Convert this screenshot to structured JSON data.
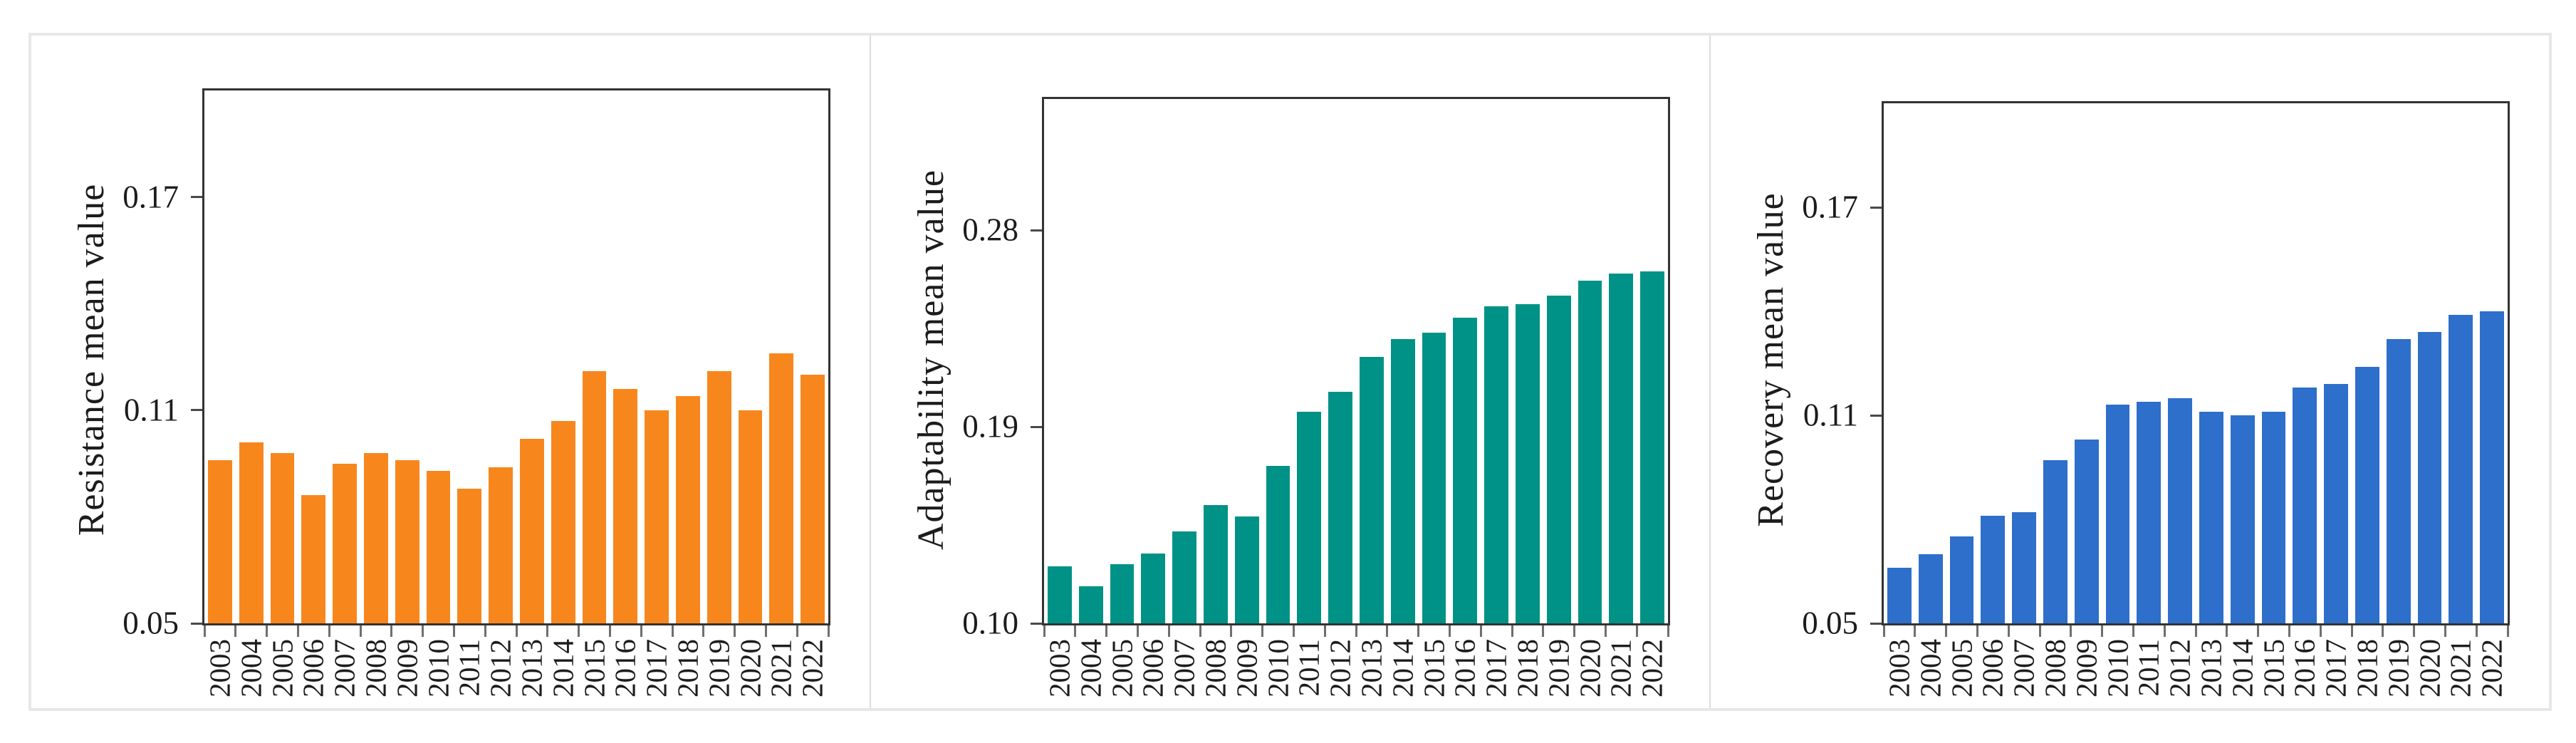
{
  "figure": {
    "panel_count": 3
  },
  "chart_data": [
    {
      "type": "bar",
      "ylabel": "Resistance mean value",
      "xlabel": "",
      "bar_color": "#F7871D",
      "categories": [
        "2003",
        "2004",
        "2005",
        "2006",
        "2007",
        "2008",
        "2009",
        "2010",
        "2011",
        "2012",
        "2013",
        "2014",
        "2015",
        "2016",
        "2017",
        "2018",
        "2019",
        "2020",
        "2021",
        "2022"
      ],
      "values": [
        0.096,
        0.101,
        0.098,
        0.086,
        0.095,
        0.098,
        0.096,
        0.093,
        0.088,
        0.094,
        0.102,
        0.107,
        0.121,
        0.116,
        0.11,
        0.114,
        0.121,
        0.11,
        0.126,
        0.12
      ],
      "ylim": [
        0.05,
        0.2
      ],
      "yticks": [
        {
          "value": 0.05,
          "label": "0.05"
        },
        {
          "value": 0.11,
          "label": "0.11"
        },
        {
          "value": 0.17,
          "label": "0.17"
        }
      ],
      "grid": false,
      "legend": null
    },
    {
      "type": "bar",
      "ylabel": "Adaptability mean value",
      "xlabel": "",
      "bar_color": "#009286",
      "categories": [
        "2003",
        "2004",
        "2005",
        "2006",
        "2007",
        "2008",
        "2009",
        "2010",
        "2011",
        "2012",
        "2013",
        "2014",
        "2015",
        "2016",
        "2017",
        "2018",
        "2019",
        "2020",
        "2021",
        "2022"
      ],
      "values": [
        0.126,
        0.117,
        0.127,
        0.132,
        0.142,
        0.154,
        0.149,
        0.172,
        0.197,
        0.206,
        0.222,
        0.23,
        0.233,
        0.24,
        0.245,
        0.246,
        0.25,
        0.257,
        0.26,
        0.261
      ],
      "ylim": [
        0.1,
        0.34
      ],
      "yticks": [
        {
          "value": 0.1,
          "label": "0.10"
        },
        {
          "value": 0.19,
          "label": "0.19"
        },
        {
          "value": 0.28,
          "label": "0.28"
        }
      ],
      "grid": false,
      "legend": null
    },
    {
      "type": "bar",
      "ylabel": "Recovery mean value",
      "xlabel": "",
      "bar_color": "#2D6FCA",
      "categories": [
        "2003",
        "2004",
        "2005",
        "2006",
        "2007",
        "2008",
        "2009",
        "2010",
        "2011",
        "2012",
        "2013",
        "2014",
        "2015",
        "2016",
        "2017",
        "2018",
        "2019",
        "2020",
        "2021",
        "2022"
      ],
      "values": [
        0.066,
        0.07,
        0.075,
        0.081,
        0.082,
        0.097,
        0.103,
        0.113,
        0.114,
        0.115,
        0.111,
        0.11,
        0.111,
        0.118,
        0.119,
        0.124,
        0.132,
        0.134,
        0.139,
        0.14
      ],
      "ylim": [
        0.05,
        0.2
      ],
      "yticks": [
        {
          "value": 0.05,
          "label": "0.05"
        },
        {
          "value": 0.11,
          "label": "0.11"
        },
        {
          "value": 0.17,
          "label": "0.17"
        }
      ],
      "grid": false,
      "legend": null
    }
  ]
}
